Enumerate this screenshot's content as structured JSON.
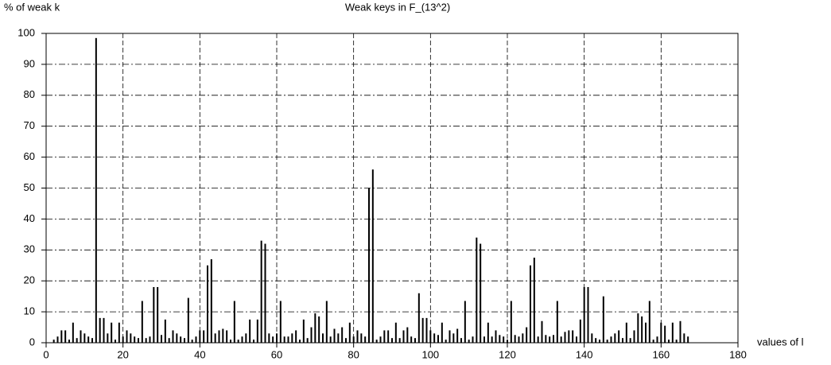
{
  "chart_data": {
    "type": "bar",
    "title": "Weak keys in F_(13^2)",
    "y_label": "% of weak k",
    "x_label": "values of l",
    "color": "#000000",
    "grid": true,
    "xlim": [
      0,
      180
    ],
    "xticks": [
      0,
      20,
      40,
      60,
      80,
      100,
      120,
      140,
      160,
      180
    ],
    "ylim": [
      0,
      100
    ],
    "yticks": [
      0,
      10,
      20,
      30,
      40,
      50,
      60,
      70,
      80,
      90,
      100
    ],
    "x": [
      2,
      3,
      4,
      5,
      6,
      7,
      8,
      9,
      10,
      11,
      12,
      13,
      14,
      15,
      16,
      17,
      18,
      19,
      20,
      21,
      22,
      23,
      24,
      25,
      26,
      27,
      28,
      29,
      30,
      31,
      32,
      33,
      34,
      35,
      36,
      37,
      38,
      39,
      40,
      41,
      42,
      43,
      44,
      45,
      46,
      47,
      48,
      49,
      50,
      51,
      52,
      53,
      54,
      55,
      56,
      57,
      58,
      59,
      60,
      61,
      62,
      63,
      64,
      65,
      66,
      67,
      68,
      69,
      70,
      71,
      72,
      73,
      74,
      75,
      76,
      77,
      78,
      79,
      80,
      81,
      82,
      83,
      84,
      85,
      86,
      87,
      88,
      89,
      90,
      91,
      92,
      93,
      94,
      95,
      96,
      97,
      98,
      99,
      100,
      101,
      102,
      103,
      104,
      105,
      106,
      107,
      108,
      109,
      110,
      111,
      112,
      113,
      114,
      115,
      116,
      117,
      118,
      119,
      120,
      121,
      122,
      123,
      124,
      125,
      126,
      127,
      128,
      129,
      130,
      131,
      132,
      133,
      134,
      135,
      136,
      137,
      138,
      139,
      140,
      141,
      142,
      143,
      144,
      145,
      146,
      147,
      148,
      149,
      150,
      151,
      152,
      153,
      154,
      155,
      156,
      157,
      158,
      159,
      160,
      161,
      162,
      163,
      164,
      165,
      166,
      167
    ],
    "values": [
      1,
      2,
      4,
      4,
      1,
      6.5,
      1.5,
      4,
      3,
      2,
      1.5,
      98.5,
      8,
      8,
      3,
      6.5,
      1,
      6.5,
      2,
      4,
      3,
      2,
      1.5,
      13.5,
      1.5,
      2,
      18,
      18,
      2.5,
      7.5,
      1.5,
      4,
      3,
      2,
      1.5,
      14.5,
      1,
      2,
      4,
      4,
      25,
      27,
      3,
      4,
      4.5,
      4,
      1,
      13.5,
      1,
      2,
      3,
      7.5,
      1,
      7.5,
      33,
      32,
      3,
      2,
      3,
      13.5,
      2,
      2,
      3,
      4,
      1,
      7.5,
      1.5,
      5,
      9.5,
      8.5,
      3,
      13.5,
      2,
      4.5,
      3,
      5,
      1.5,
      6.5,
      2,
      4,
      3,
      2,
      50,
      56,
      1,
      2,
      4,
      4,
      1.5,
      6.5,
      1.5,
      4,
      5,
      2,
      1.5,
      16,
      8,
      8,
      4,
      3,
      2.5,
      6.5,
      1,
      4,
      3,
      4.5,
      1.5,
      13.5,
      1,
      2,
      34,
      32,
      2,
      6.5,
      2,
      4,
      2.5,
      2,
      1,
      13.5,
      2.5,
      2,
      3,
      5,
      25,
      27.5,
      2,
      7,
      2.5,
      2,
      2.5,
      13.5,
      2,
      3.5,
      4,
      4,
      2,
      7.5,
      18,
      18,
      3,
      1.5,
      1,
      15,
      1,
      2,
      3,
      4,
      1.5,
      6.5,
      1.5,
      4,
      9.5,
      8.5,
      6.5,
      13.5,
      1,
      2,
      6.5,
      5.5,
      1,
      6.5,
      1,
      7,
      3,
      2
    ]
  }
}
